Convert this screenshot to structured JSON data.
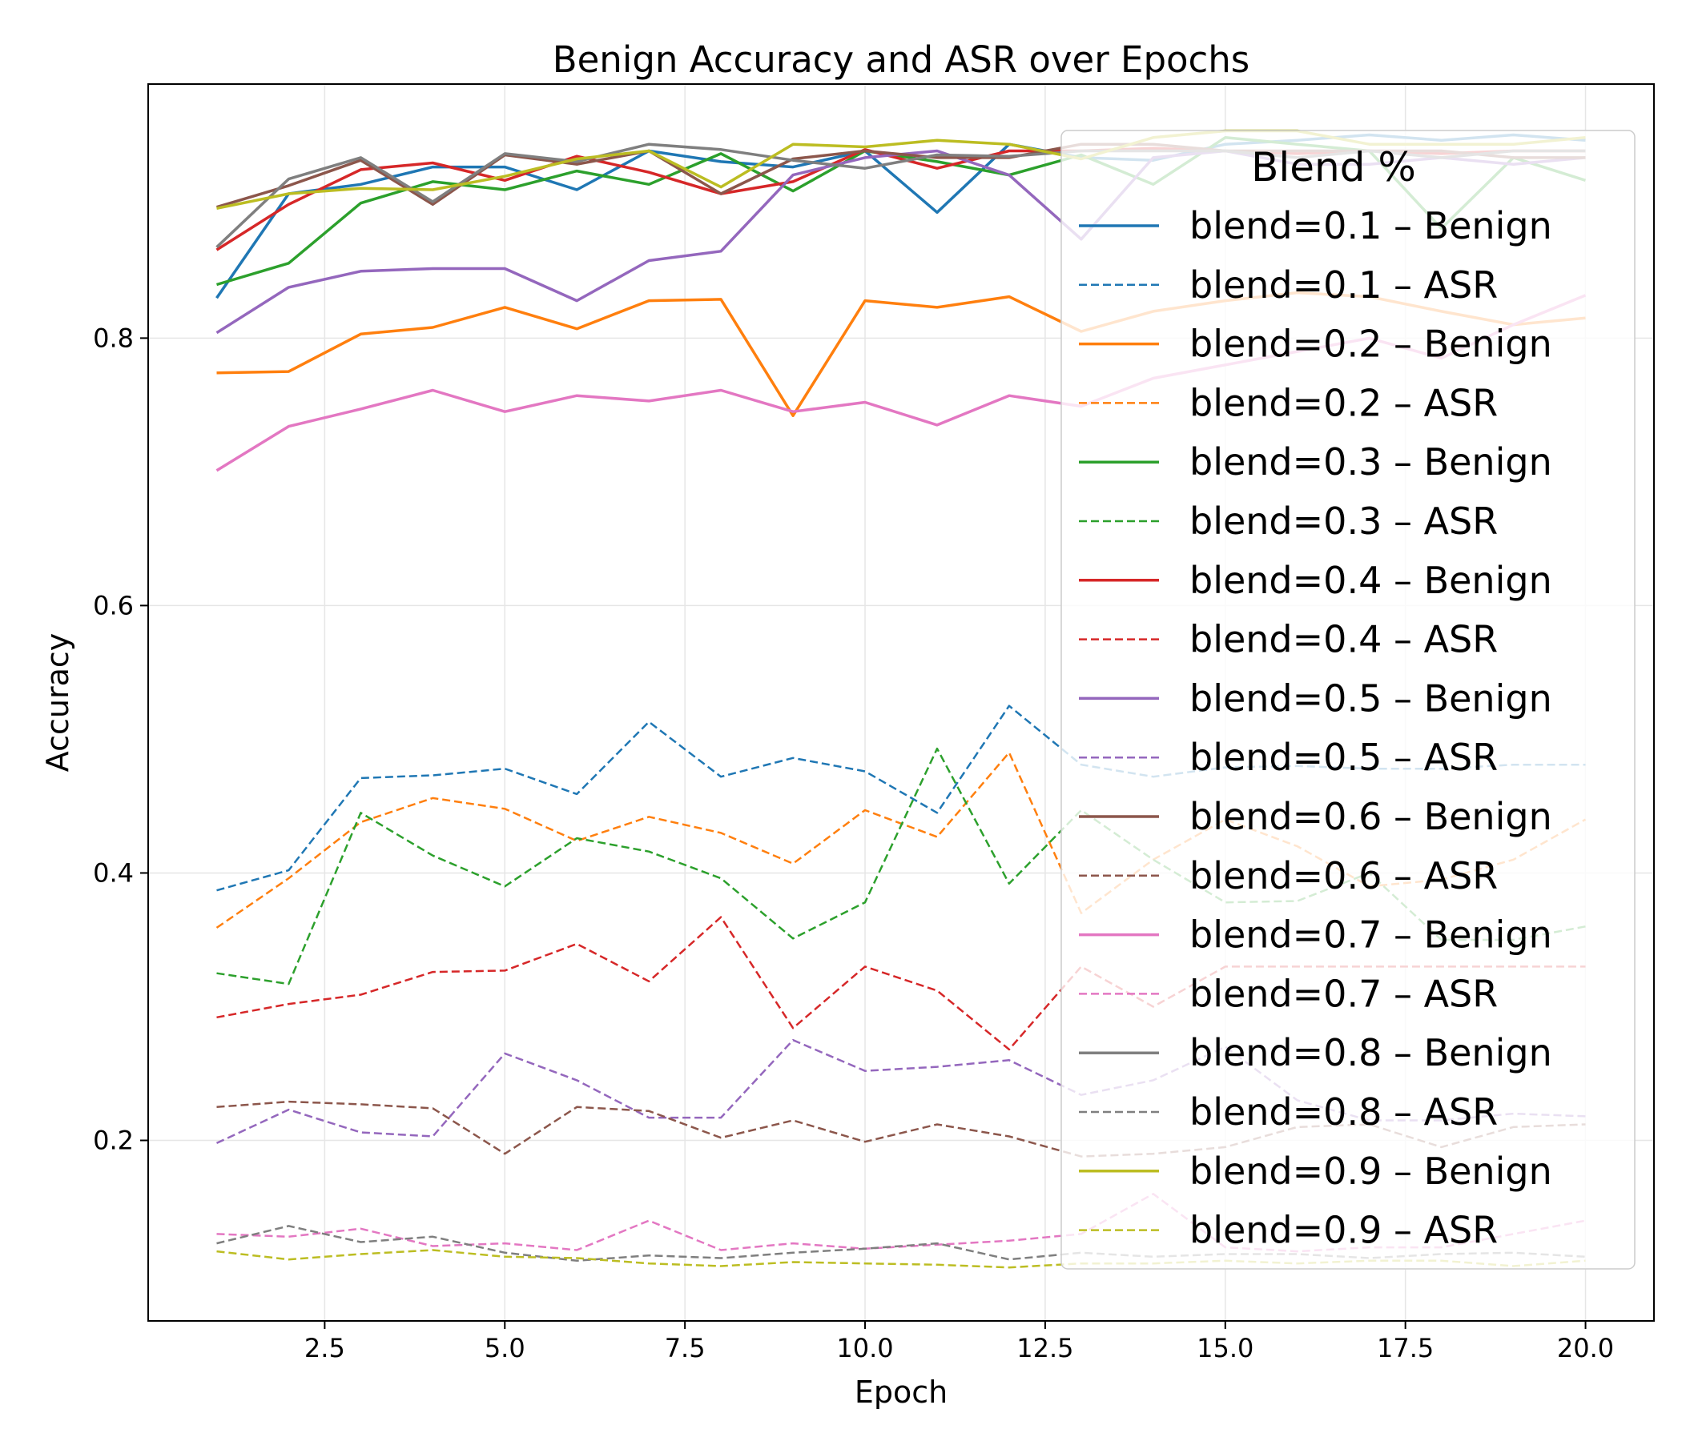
{
  "chart_data": {
    "type": "line",
    "title": "Benign Accuracy and ASR over Epochs",
    "xlabel": "Epoch",
    "ylabel": "Accuracy",
    "xlim": [
      0.05,
      20.95
    ],
    "ylim": [
      0.065,
      0.99
    ],
    "xticks": [
      2.5,
      5.0,
      7.5,
      10.0,
      12.5,
      15.0,
      17.5,
      20.0
    ],
    "xtick_labels": [
      "2.5",
      "5.0",
      "7.5",
      "10.0",
      "12.5",
      "15.0",
      "17.5",
      "20.0"
    ],
    "yticks": [
      0.2,
      0.4,
      0.6,
      0.8
    ],
    "ytick_labels": [
      "0.2",
      "0.4",
      "0.6",
      "0.8"
    ],
    "grid": true,
    "legend": {
      "title": "Blend %",
      "placement": "top-right"
    },
    "x": [
      1,
      2,
      3,
      4,
      5,
      6,
      7,
      8,
      9,
      10,
      11,
      12,
      13,
      14,
      15,
      16,
      17,
      18,
      19,
      20
    ],
    "series": [
      {
        "name": "blend=0.1 – Benign",
        "color": "#1f77b4",
        "style": "solid",
        "values": [
          0.83,
          0.908,
          0.915,
          0.928,
          0.928,
          0.911,
          0.94,
          0.932,
          0.928,
          0.94,
          0.894,
          0.945,
          0.935,
          0.933,
          0.945,
          0.948,
          0.952,
          0.948,
          0.952,
          0.948
        ]
      },
      {
        "name": "blend=0.1 – ASR",
        "color": "#1f77b4",
        "style": "dashed",
        "values": [
          0.387,
          0.402,
          0.471,
          0.473,
          0.478,
          0.459,
          0.513,
          0.472,
          0.486,
          0.476,
          0.445,
          0.525,
          0.481,
          0.472,
          0.479,
          0.48,
          0.478,
          0.478,
          0.481,
          0.481
        ]
      },
      {
        "name": "blend=0.2 – Benign",
        "color": "#ff7f0e",
        "style": "solid",
        "values": [
          0.774,
          0.775,
          0.803,
          0.808,
          0.823,
          0.807,
          0.828,
          0.829,
          0.742,
          0.828,
          0.823,
          0.831,
          0.805,
          0.82,
          0.828,
          0.834,
          0.831,
          0.82,
          0.81,
          0.815
        ]
      },
      {
        "name": "blend=0.2 – ASR",
        "color": "#ff7f0e",
        "style": "dashed",
        "values": [
          0.359,
          0.396,
          0.438,
          0.456,
          0.448,
          0.424,
          0.442,
          0.43,
          0.407,
          0.447,
          0.427,
          0.49,
          0.37,
          0.41,
          0.44,
          0.42,
          0.39,
          0.395,
          0.41,
          0.44
        ]
      },
      {
        "name": "blend=0.3 – Benign",
        "color": "#2ca02c",
        "style": "solid",
        "values": [
          0.84,
          0.856,
          0.901,
          0.917,
          0.911,
          0.925,
          0.915,
          0.938,
          0.91,
          0.94,
          0.932,
          0.922,
          0.937,
          0.915,
          0.95,
          0.945,
          0.94,
          0.882,
          0.935,
          0.918
        ]
      },
      {
        "name": "blend=0.3 – ASR",
        "color": "#2ca02c",
        "style": "dashed",
        "values": [
          0.325,
          0.317,
          0.445,
          0.413,
          0.39,
          0.426,
          0.416,
          0.396,
          0.351,
          0.378,
          0.493,
          0.392,
          0.447,
          0.41,
          0.378,
          0.379,
          0.4,
          0.35,
          0.35,
          0.36
        ]
      },
      {
        "name": "blend=0.4 – Benign",
        "color": "#d62728",
        "style": "solid",
        "values": [
          0.866,
          0.9,
          0.926,
          0.931,
          0.918,
          0.936,
          0.924,
          0.908,
          0.917,
          0.941,
          0.927,
          0.94,
          0.94,
          0.942,
          0.94,
          0.938,
          0.94,
          0.938,
          0.94,
          0.94
        ]
      },
      {
        "name": "blend=0.4 – ASR",
        "color": "#d62728",
        "style": "dashed",
        "values": [
          0.292,
          0.302,
          0.309,
          0.326,
          0.327,
          0.347,
          0.319,
          0.367,
          0.284,
          0.33,
          0.312,
          0.268,
          0.33,
          0.3,
          0.33,
          0.33,
          0.33,
          0.33,
          0.33,
          0.33
        ]
      },
      {
        "name": "blend=0.5 – Benign",
        "color": "#9467bd",
        "style": "solid",
        "values": [
          0.804,
          0.838,
          0.85,
          0.852,
          0.852,
          0.828,
          0.858,
          0.865,
          0.922,
          0.935,
          0.94,
          0.922,
          0.874,
          0.935,
          0.94,
          0.93,
          0.93,
          0.935,
          0.93,
          0.935
        ]
      },
      {
        "name": "blend=0.5 – ASR",
        "color": "#9467bd",
        "style": "dashed",
        "values": [
          0.198,
          0.223,
          0.206,
          0.203,
          0.265,
          0.245,
          0.217,
          0.217,
          0.275,
          0.252,
          0.255,
          0.26,
          0.234,
          0.245,
          0.27,
          0.23,
          0.215,
          0.215,
          0.22,
          0.218
        ]
      },
      {
        "name": "blend=0.6 – Benign",
        "color": "#8c564b",
        "style": "solid",
        "values": [
          0.898,
          0.914,
          0.933,
          0.9,
          0.937,
          0.93,
          0.94,
          0.908,
          0.934,
          0.94,
          0.935,
          0.935,
          0.945,
          0.945,
          0.94,
          0.94,
          0.94,
          0.94,
          0.935,
          0.935
        ]
      },
      {
        "name": "blend=0.6 – ASR",
        "color": "#8c564b",
        "style": "dashed",
        "values": [
          0.225,
          0.229,
          0.227,
          0.224,
          0.19,
          0.225,
          0.222,
          0.202,
          0.215,
          0.199,
          0.212,
          0.203,
          0.188,
          0.19,
          0.195,
          0.21,
          0.212,
          0.195,
          0.21,
          0.212
        ]
      },
      {
        "name": "blend=0.7 – Benign",
        "color": "#e377c2",
        "style": "solid",
        "values": [
          0.701,
          0.734,
          0.747,
          0.761,
          0.745,
          0.757,
          0.753,
          0.761,
          0.745,
          0.752,
          0.735,
          0.757,
          0.749,
          0.77,
          0.78,
          0.79,
          0.8,
          0.785,
          0.81,
          0.832
        ]
      },
      {
        "name": "blend=0.7 – ASR",
        "color": "#e377c2",
        "style": "dashed",
        "values": [
          0.13,
          0.128,
          0.134,
          0.121,
          0.123,
          0.118,
          0.14,
          0.118,
          0.123,
          0.119,
          0.122,
          0.125,
          0.13,
          0.16,
          0.12,
          0.117,
          0.12,
          0.12,
          0.13,
          0.14
        ]
      },
      {
        "name": "blend=0.8 – Benign",
        "color": "#7f7f7f",
        "style": "solid",
        "values": [
          0.868,
          0.919,
          0.935,
          0.902,
          0.938,
          0.932,
          0.945,
          0.941,
          0.933,
          0.927,
          0.937,
          0.936,
          0.94,
          0.94,
          0.94,
          0.935,
          0.94,
          0.935,
          0.94,
          0.94
        ]
      },
      {
        "name": "blend=0.8 – ASR",
        "color": "#7f7f7f",
        "style": "dashed",
        "values": [
          0.123,
          0.136,
          0.124,
          0.128,
          0.116,
          0.11,
          0.114,
          0.112,
          0.116,
          0.119,
          0.123,
          0.111,
          0.116,
          0.113,
          0.115,
          0.115,
          0.112,
          0.115,
          0.116,
          0.113
        ]
      },
      {
        "name": "blend=0.9 – Benign",
        "color": "#bcbd22",
        "style": "solid",
        "values": [
          0.897,
          0.908,
          0.912,
          0.911,
          0.921,
          0.934,
          0.94,
          0.913,
          0.945,
          0.943,
          0.948,
          0.945,
          0.934,
          0.95,
          0.955,
          0.955,
          0.945,
          0.945,
          0.945,
          0.95
        ]
      },
      {
        "name": "blend=0.9 – ASR",
        "color": "#bcbd22",
        "style": "dashed",
        "values": [
          0.117,
          0.111,
          0.115,
          0.118,
          0.113,
          0.112,
          0.108,
          0.106,
          0.109,
          0.108,
          0.107,
          0.105,
          0.108,
          0.108,
          0.11,
          0.108,
          0.11,
          0.11,
          0.106,
          0.11
        ]
      }
    ]
  }
}
